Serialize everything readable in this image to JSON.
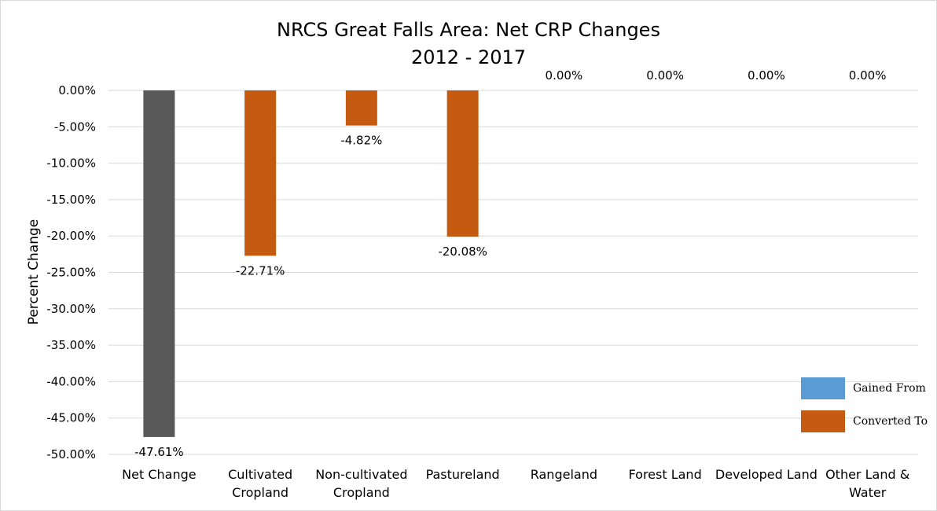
{
  "chart_data": {
    "type": "bar",
    "title": "NRCS Great Falls Area: Net CRP Changes",
    "subtitle": "2012 - 2017",
    "xlabel": "",
    "ylabel": "Percent Change",
    "ylim": [
      -50,
      0
    ],
    "yticks": [
      "0.00%",
      "-5.00%",
      "-10.00%",
      "-15.00%",
      "-20.00%",
      "-25.00%",
      "-30.00%",
      "-35.00%",
      "-40.00%",
      "-45.00%",
      "-50.00%"
    ],
    "ytick_values": [
      0,
      -5,
      -10,
      -15,
      -20,
      -25,
      -30,
      -35,
      -40,
      -45,
      -50
    ],
    "grid": true,
    "legend_position": "bottom-right",
    "categories": [
      [
        "Net Change"
      ],
      [
        "Cultivated",
        "Cropland"
      ],
      [
        "Non-cultivated",
        "Cropland"
      ],
      [
        "Pastureland"
      ],
      [
        "Rangeland"
      ],
      [
        "Forest Land"
      ],
      [
        "Developed Land"
      ],
      [
        "Other Land &",
        "Water"
      ]
    ],
    "values": [
      -47.61,
      -22.71,
      -4.82,
      -20.08,
      0.0,
      0.0,
      0.0,
      0.0
    ],
    "data_labels": [
      "-47.61%",
      "-22.71%",
      "-4.82%",
      "-20.08%",
      "0.00%",
      "0.00%",
      "0.00%",
      "0.00%"
    ],
    "bar_colors": [
      "#595959",
      "#c55a11",
      "#c55a11",
      "#c55a11",
      "#c55a11",
      "#c55a11",
      "#c55a11",
      "#c55a11"
    ],
    "legend": [
      {
        "name": "Gained From",
        "color": "#5b9bd5"
      },
      {
        "name": "Converted To",
        "color": "#c55a11"
      }
    ]
  }
}
